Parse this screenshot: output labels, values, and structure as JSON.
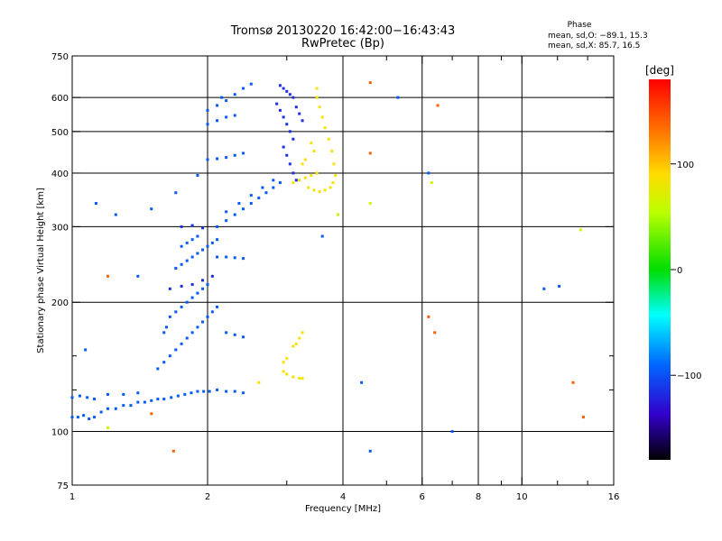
{
  "chart_data": {
    "type": "scatter",
    "title": "Tromsø 20130220 16:42:00−16:43:43",
    "subtitle": "RwPretec (Bp)",
    "xlabel": "Frequency [MHz]",
    "ylabel": "Stationary phase Virtual Height [km]",
    "x_scale": "log",
    "y_scale": "log",
    "xlim": [
      1,
      16
    ],
    "ylim": [
      75,
      750
    ],
    "x_ticks": [
      1,
      2,
      4,
      6,
      8,
      10,
      16
    ],
    "x_minor_ticks": [
      3,
      5,
      7,
      9,
      12,
      14
    ],
    "y_ticks": [
      75,
      100,
      200,
      300,
      400,
      500,
      600,
      750
    ],
    "y_minor_ticks": [
      125,
      150
    ],
    "x_gridlines": [
      2,
      4,
      6,
      8,
      10
    ],
    "y_gridlines": [
      100,
      200,
      300,
      400,
      500,
      600
    ],
    "phase_stats": {
      "heading": "Phase",
      "line_o": "mean, sd,O: −89.1, 15.3",
      "line_x": "mean, sd,X:  85.7, 16.5"
    },
    "colorbar": {
      "label": "[deg]",
      "range": [
        -180,
        180
      ],
      "ticks": [
        "100",
        "0",
        "−100"
      ],
      "tick_values": [
        100,
        0,
        -100
      ]
    },
    "series": [
      {
        "phase": -95,
        "points": [
          [
            1.0,
            108
          ],
          [
            1.03,
            108
          ],
          [
            1.06,
            109
          ],
          [
            1.09,
            107
          ],
          [
            1.12,
            108
          ],
          [
            1.0,
            120
          ],
          [
            1.04,
            121
          ],
          [
            1.08,
            120
          ],
          [
            1.12,
            119
          ],
          [
            1.16,
            111
          ],
          [
            1.2,
            113
          ],
          [
            1.25,
            113
          ],
          [
            1.3,
            115
          ],
          [
            1.35,
            115
          ],
          [
            1.4,
            117
          ],
          [
            1.45,
            117
          ],
          [
            1.5,
            118
          ],
          [
            1.55,
            119
          ],
          [
            1.6,
            119
          ],
          [
            1.66,
            120
          ],
          [
            1.72,
            121
          ],
          [
            1.78,
            122
          ],
          [
            1.84,
            123
          ],
          [
            1.9,
            124
          ],
          [
            1.96,
            124
          ],
          [
            2.02,
            124
          ],
          [
            2.1,
            125
          ],
          [
            2.2,
            124
          ],
          [
            2.3,
            124
          ],
          [
            2.4,
            123
          ],
          [
            1.2,
            122
          ],
          [
            1.3,
            122
          ],
          [
            1.4,
            123
          ],
          [
            1.55,
            140
          ],
          [
            1.6,
            145
          ],
          [
            1.65,
            150
          ],
          [
            1.7,
            155
          ],
          [
            1.75,
            160
          ],
          [
            1.8,
            165
          ],
          [
            1.85,
            170
          ],
          [
            1.9,
            175
          ],
          [
            1.95,
            180
          ],
          [
            2.0,
            185
          ],
          [
            2.05,
            190
          ],
          [
            2.1,
            195
          ],
          [
            1.65,
            185
          ],
          [
            1.7,
            190
          ],
          [
            1.75,
            195
          ],
          [
            1.8,
            200
          ],
          [
            1.85,
            205
          ],
          [
            1.9,
            210
          ],
          [
            1.95,
            215
          ],
          [
            2.0,
            220
          ],
          [
            1.6,
            170
          ],
          [
            1.62,
            175
          ],
          [
            2.2,
            170
          ],
          [
            2.3,
            168
          ],
          [
            2.4,
            166
          ],
          [
            1.7,
            240
          ],
          [
            1.75,
            245
          ],
          [
            1.8,
            250
          ],
          [
            1.85,
            255
          ],
          [
            1.9,
            260
          ],
          [
            1.95,
            265
          ],
          [
            2.0,
            270
          ],
          [
            2.05,
            275
          ],
          [
            2.1,
            280
          ],
          [
            1.75,
            270
          ],
          [
            1.8,
            275
          ],
          [
            1.85,
            280
          ],
          [
            1.9,
            285
          ],
          [
            2.1,
            255
          ],
          [
            2.2,
            255
          ],
          [
            2.3,
            254
          ],
          [
            2.4,
            253
          ],
          [
            2.1,
            300
          ],
          [
            2.2,
            310
          ],
          [
            2.3,
            320
          ],
          [
            2.4,
            330
          ],
          [
            2.5,
            340
          ],
          [
            2.6,
            350
          ],
          [
            2.7,
            360
          ],
          [
            2.8,
            370
          ],
          [
            2.9,
            380
          ],
          [
            2.2,
            325
          ],
          [
            2.35,
            340
          ],
          [
            2.5,
            355
          ],
          [
            2.65,
            370
          ],
          [
            2.8,
            385
          ],
          [
            2.0,
            430
          ],
          [
            2.1,
            432
          ],
          [
            2.2,
            435
          ],
          [
            2.3,
            440
          ],
          [
            2.4,
            445
          ],
          [
            2.0,
            520
          ],
          [
            2.1,
            530
          ],
          [
            2.2,
            540
          ],
          [
            2.3,
            545
          ],
          [
            2.0,
            560
          ],
          [
            2.1,
            575
          ],
          [
            2.2,
            590
          ],
          [
            2.3,
            610
          ],
          [
            2.4,
            630
          ],
          [
            2.5,
            645
          ],
          [
            1.13,
            340
          ],
          [
            1.07,
            155
          ],
          [
            1.25,
            320
          ],
          [
            1.4,
            230
          ],
          [
            1.5,
            330
          ],
          [
            1.9,
            395
          ],
          [
            1.7,
            360
          ],
          [
            2.15,
            600
          ],
          [
            3.6,
            285
          ],
          [
            4.4,
            130
          ],
          [
            4.6,
            90
          ],
          [
            5.3,
            600
          ],
          [
            7.0,
            100
          ],
          [
            11.2,
            215
          ],
          [
            12.1,
            218
          ],
          [
            6.2,
            400
          ]
        ]
      },
      {
        "phase": -115,
        "points": [
          [
            2.9,
            640
          ],
          [
            2.95,
            630
          ],
          [
            3.0,
            620
          ],
          [
            3.05,
            610
          ],
          [
            3.1,
            600
          ],
          [
            2.9,
            560
          ],
          [
            2.95,
            540
          ],
          [
            3.0,
            520
          ],
          [
            3.05,
            500
          ],
          [
            3.1,
            480
          ],
          [
            2.95,
            460
          ],
          [
            3.0,
            440
          ],
          [
            3.05,
            420
          ],
          [
            3.1,
            400
          ],
          [
            3.15,
            385
          ],
          [
            2.85,
            580
          ],
          [
            3.15,
            570
          ],
          [
            3.2,
            550
          ],
          [
            3.25,
            530
          ],
          [
            1.65,
            215
          ],
          [
            1.75,
            218
          ],
          [
            1.85,
            220
          ],
          [
            1.95,
            225
          ],
          [
            2.05,
            230
          ],
          [
            1.75,
            300
          ],
          [
            1.85,
            302
          ],
          [
            1.95,
            298
          ]
        ]
      },
      {
        "phase": 85,
        "points": [
          [
            3.1,
            380
          ],
          [
            3.2,
            385
          ],
          [
            3.3,
            390
          ],
          [
            3.4,
            395
          ],
          [
            3.5,
            400
          ],
          [
            3.35,
            370
          ],
          [
            3.45,
            365
          ],
          [
            3.55,
            362
          ],
          [
            3.65,
            365
          ],
          [
            3.75,
            370
          ],
          [
            3.8,
            380
          ],
          [
            3.85,
            395
          ],
          [
            3.82,
            420
          ],
          [
            3.78,
            450
          ],
          [
            3.72,
            480
          ],
          [
            3.65,
            510
          ],
          [
            3.6,
            540
          ],
          [
            3.55,
            570
          ],
          [
            3.5,
            600
          ],
          [
            3.5,
            630
          ],
          [
            3.45,
            450
          ],
          [
            3.4,
            470
          ],
          [
            3.3,
            430
          ],
          [
            3.25,
            420
          ],
          [
            2.95,
            138
          ],
          [
            3.0,
            136
          ],
          [
            3.1,
            134
          ],
          [
            3.2,
            133
          ],
          [
            3.25,
            133
          ],
          [
            3.1,
            158
          ],
          [
            3.15,
            160
          ],
          [
            3.2,
            165
          ],
          [
            3.25,
            170
          ],
          [
            2.95,
            145
          ],
          [
            3.0,
            148
          ],
          [
            2.6,
            130
          ]
        ]
      },
      {
        "phase": 140,
        "points": [
          [
            6.5,
            575
          ],
          [
            4.6,
            650
          ],
          [
            1.2,
            230
          ],
          [
            1.68,
            90
          ],
          [
            1.5,
            110
          ],
          [
            6.2,
            185
          ],
          [
            6.4,
            170
          ],
          [
            13.7,
            108
          ],
          [
            13.0,
            130
          ],
          [
            4.6,
            445
          ]
        ]
      },
      {
        "phase": 60,
        "points": [
          [
            1.2,
            102
          ],
          [
            3.9,
            320
          ],
          [
            6.3,
            380
          ],
          [
            13.5,
            295
          ],
          [
            4.6,
            340
          ]
        ]
      }
    ]
  }
}
